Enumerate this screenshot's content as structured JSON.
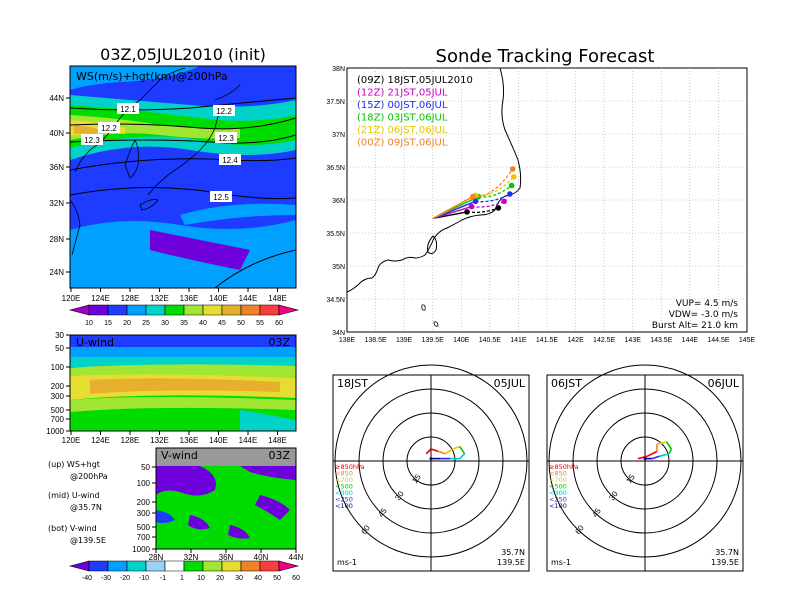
{
  "titles": {
    "left": "03Z,05JUL2010 (init)",
    "right": "Sonde Tracking Forecast"
  },
  "map_panel": {
    "label": "WS(m/s)+hgt(km)@200hPa",
    "lat_ticks": [
      "44N",
      "40N",
      "36N",
      "32N",
      "28N",
      "24N"
    ],
    "lon_ticks": [
      "120E",
      "124E",
      "128E",
      "132E",
      "136E",
      "140E",
      "144E",
      "148E"
    ],
    "contour_labels": [
      "12.1",
      "12.2",
      "12.2",
      "12.3",
      "12.3",
      "12.4",
      "12.5"
    ],
    "colorbar_ticks": [
      "10",
      "15",
      "20",
      "25",
      "30",
      "35",
      "40",
      "45",
      "50",
      "55",
      "60"
    ],
    "colorbar_colors": [
      "#a000c8",
      "#6e00dc",
      "#1e3cff",
      "#00a0ff",
      "#00d2c8",
      "#00dc00",
      "#a0e632",
      "#e6dc32",
      "#e6af2d",
      "#f08228",
      "#fa3c3c",
      "#f00082"
    ]
  },
  "u_panel": {
    "label": "U-wind",
    "time": "03Z",
    "p_ticks": [
      "30",
      "50",
      "100",
      "200",
      "300",
      "500",
      "700",
      "1000"
    ],
    "lon_ticks": [
      "120E",
      "124E",
      "128E",
      "132E",
      "136E",
      "140E",
      "144E",
      "148E"
    ]
  },
  "v_panel": {
    "label": "V-wind",
    "time": "03Z",
    "p_ticks": [
      "50",
      "100",
      "200",
      "300",
      "500",
      "700",
      "1000"
    ],
    "lat_ticks": [
      "28N",
      "32N",
      "36N",
      "40N",
      "44N"
    ],
    "colorbar_ticks": [
      "-40",
      "-30",
      "-20",
      "-10",
      "-1",
      "1",
      "10",
      "20",
      "30",
      "40",
      "50",
      "60"
    ],
    "colorbar_colors": [
      "#6e00dc",
      "#1e3cff",
      "#00a0ff",
      "#00d2c8",
      "#96d2fa",
      "#ffffff",
      "#00dc00",
      "#a0e632",
      "#e6dc32",
      "#f08228",
      "#fa3c3c",
      "#f00082"
    ]
  },
  "legend_notes": [
    {
      "line1": "(up) WS+hgt",
      "line2": "@200hPa"
    },
    {
      "line1": "(mid) U-wind",
      "line2": "@35.7N"
    },
    {
      "line1": "(bot) V-wind",
      "line2": "@139.5E"
    }
  ],
  "track_map": {
    "lat_ticks": [
      "38N",
      "37.5N",
      "37N",
      "36.5N",
      "36N",
      "35.5N",
      "35N",
      "34.5N",
      "34N"
    ],
    "lon_ticks": [
      "138E",
      "138.5E",
      "139E",
      "139.5E",
      "140E",
      "140.5E",
      "141E",
      "141.5E",
      "142E",
      "142.5E",
      "143E",
      "143.5E",
      "144E",
      "144.5E",
      "145E"
    ],
    "params": [
      "VUP= 4.5 m/s",
      "VDW= -3.0 m/s",
      "Burst Alt= 21.0 km"
    ]
  },
  "chart_data": {
    "type": "scatter",
    "title": "Sonde Tracking Forecast",
    "xlim": [
      138,
      145
    ],
    "ylim": [
      34,
      38
    ],
    "launch": {
      "lon": 139.5,
      "lat": 35.72
    },
    "series": [
      {
        "name": "(09Z) 18JST,05JUL2010",
        "color": "#000000",
        "burst": [
          140.1,
          35.82
        ],
        "land": [
          140.65,
          35.88
        ]
      },
      {
        "name": "(12Z) 21JST,05JUL",
        "color": "#c800c8",
        "burst": [
          140.18,
          35.9
        ],
        "land": [
          140.75,
          35.98
        ]
      },
      {
        "name": "(15Z) 00JST,06JUL",
        "color": "#2828ff",
        "burst": [
          140.25,
          35.98
        ],
        "land": [
          140.85,
          36.09
        ]
      },
      {
        "name": "(18Z) 03JST,06JUL",
        "color": "#00c800",
        "burst": [
          140.3,
          36.05
        ],
        "land": [
          140.88,
          36.22
        ]
      },
      {
        "name": "(21Z) 06JST,06JUL",
        "color": "#e6c800",
        "burst": [
          140.25,
          36.07
        ],
        "land": [
          140.92,
          36.35
        ]
      },
      {
        "name": "(00Z) 09JST,06JUL",
        "color": "#f08228",
        "burst": [
          140.2,
          36.05
        ],
        "land": [
          140.9,
          36.47
        ]
      }
    ]
  },
  "hodographs": [
    {
      "time": "18JST",
      "date": "05JUL",
      "lat": "35.7N",
      "lon": "139.5E",
      "unit": "ms-1",
      "ring_labels": [
        "15",
        "30",
        "45",
        "60"
      ],
      "layers": [
        "≥850hPa",
        "<850",
        "<700",
        "<500",
        "<300",
        "<250",
        "<100"
      ],
      "layer_colors": [
        "#e60000",
        "#f08228",
        "#e6c800",
        "#00c800",
        "#00c8c8",
        "#2828ff",
        "#0000aa"
      ],
      "points_uv": [
        [
          -2,
          3
        ],
        [
          0,
          5
        ],
        [
          3,
          4
        ],
        [
          6,
          3
        ],
        [
          9,
          5
        ],
        [
          12,
          6
        ],
        [
          14,
          3
        ],
        [
          12,
          1
        ],
        [
          8,
          1
        ],
        [
          4,
          1
        ],
        [
          0,
          1
        ]
      ]
    },
    {
      "time": "06JST",
      "date": "06JUL",
      "lat": "35.7N",
      "lon": "139.5E",
      "unit": "ms-1",
      "ring_labels": [
        "15",
        "30",
        "45",
        "60"
      ],
      "layers": [
        "≥850hPa",
        "<850",
        "<700",
        "<500",
        "<300",
        "<250",
        "<100"
      ],
      "layer_colors": [
        "#e60000",
        "#f08228",
        "#e6c800",
        "#00c800",
        "#00c8c8",
        "#2828ff",
        "#0000aa"
      ],
      "points_uv": [
        [
          -3,
          1
        ],
        [
          1,
          2
        ],
        [
          5,
          4
        ],
        [
          5,
          7
        ],
        [
          9,
          8
        ],
        [
          11,
          5
        ],
        [
          10,
          3
        ],
        [
          6,
          2
        ],
        [
          3,
          1
        ],
        [
          0,
          1
        ]
      ]
    }
  ]
}
